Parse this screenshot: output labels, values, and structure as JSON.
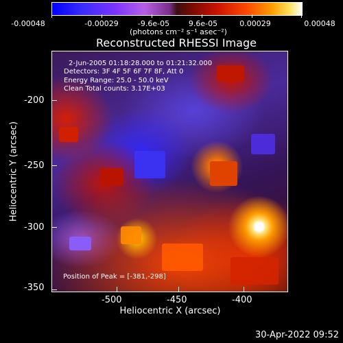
{
  "colorbar": {
    "ticks": [
      "-0.00048",
      "-0.00029",
      "-9.6e-05",
      "9.6e-05",
      "0.00029",
      "0.00048"
    ],
    "units": "(photons cm⁻² s⁻¹ asec⁻²)"
  },
  "title": "Reconstructed RHESSI Image",
  "annotations": {
    "time": "2-Jun-2005 01:18:28.000 to 01:21:32.000",
    "detectors": "Detectors: 3F 4F 5F 6F 7F 8F, Att 0",
    "energy": "Energy Range: 25.0 - 50.0 keV",
    "method": "Clean     Total counts: 3.17E+03",
    "peak": "Position of Peak = [-381,-298]"
  },
  "axes": {
    "xlabel": "Heliocentric X (arcsec)",
    "ylabel": "Heliocentric Y (arcsec)",
    "xticks": [
      "-500",
      "-450",
      "-400"
    ],
    "yticks": [
      "-200",
      "-250",
      "-300",
      "-350"
    ],
    "xrange": [
      -547,
      -365
    ],
    "yrange": [
      -353,
      -168
    ]
  },
  "footer": "30-Apr-2022 09:52",
  "colors": {
    "background": "#000000",
    "foreground": "#ffffff"
  }
}
